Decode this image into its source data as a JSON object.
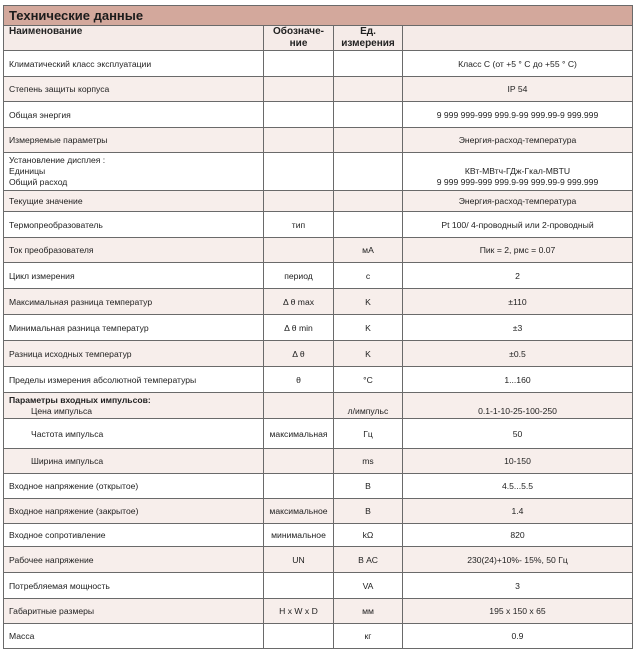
{
  "title": "Технические данные",
  "headers": [
    "Наименование",
    "Обозначе-ние",
    "Ед. измерения",
    ""
  ],
  "rows": [
    {
      "name": "Климатический класс эксплуатации",
      "sym": "",
      "unit": "",
      "value": "Класс С (от +5 ° С до +55 ° С)"
    },
    {
      "name": "Степень защиты корпуса",
      "sym": "",
      "unit": "",
      "value": "IP 54"
    },
    {
      "name": "Общая энергия",
      "sym": "",
      "unit": "",
      "value": "9 999 999-999 999.9-99 999.99-9 999.999"
    },
    {
      "name": "Измеряемые параметры",
      "sym": "",
      "unit": "",
      "value": "Энергия-расход-температура"
    },
    {
      "name": "Текущие значение",
      "sym": "",
      "unit": "",
      "value": "Энергия-расход-температура"
    },
    {
      "name": "Термопреобразователь",
      "sym": "тип",
      "unit": "",
      "value": "Pt 100/ 4-проводный или 2-проводный"
    },
    {
      "name": "Ток преобразователя",
      "sym": "",
      "unit": "мА",
      "value": "Пик = 2, рмс = 0.07"
    },
    {
      "name": "Цикл измерения",
      "sym": "период",
      "unit": "с",
      "value": "2"
    },
    {
      "name": "Максимальная разница температур",
      "sym": "Δ θ max",
      "unit": "K",
      "value": "±110"
    },
    {
      "name": "Минимальная разница температур",
      "sym": "Δ θ min",
      "unit": "K",
      "value": "±3"
    },
    {
      "name": "Разница исходных температур",
      "sym": "Δ θ",
      "unit": "K",
      "value": "±0.5"
    },
    {
      "name": "Пределы измерения абсолютной температуры",
      "sym": "θ",
      "unit": "°C",
      "value": "1...160"
    },
    {
      "name": "Входное напряжение (открытое)",
      "sym": "",
      "unit": "В",
      "value": "4.5...5.5"
    },
    {
      "name": "Входное напряжение (закрытое)",
      "sym": "максимальное",
      "unit": "В",
      "value": "1.4"
    },
    {
      "name": "Входное сопротивление",
      "sym": "минимальное",
      "unit": "kΩ",
      "value": "820"
    },
    {
      "name": "Рабочее напряжение",
      "sym": "UN",
      "unit": "В АС",
      "value": "230(24)+10%- 15%, 50 Гц"
    },
    {
      "name": "Потребляемая мощность",
      "sym": "",
      "unit": "VA",
      "value": "3"
    },
    {
      "name": "Габаритные размеры",
      "sym": "H x W x D",
      "unit": "мм",
      "value": "195 x 150 x 65"
    },
    {
      "name": "Масса",
      "sym": "",
      "unit": "кг",
      "value": "0.9"
    }
  ],
  "display": {
    "label": "Установление дисплея :",
    "units_label": "Единицы",
    "flow_label": "Общий расход",
    "units_value": "КВт-МВтч-ГДж-Гкал-MBTU",
    "flow_value": "9 999 999-999 999.9-99 999.99-9 999.999"
  },
  "pulses": {
    "label": "Параметры входных импульсов:",
    "price": {
      "name": "Цена импульса",
      "sym": "",
      "unit": "л/импульс",
      "value": "0.1-1-10-25-100-250"
    },
    "freq": {
      "name": "Частота импульса",
      "sym": "максимальная",
      "unit": "Гц",
      "value": "50"
    },
    "width": {
      "name": "Ширина импульса",
      "sym": "",
      "unit": "ms",
      "value": "10-150"
    }
  }
}
